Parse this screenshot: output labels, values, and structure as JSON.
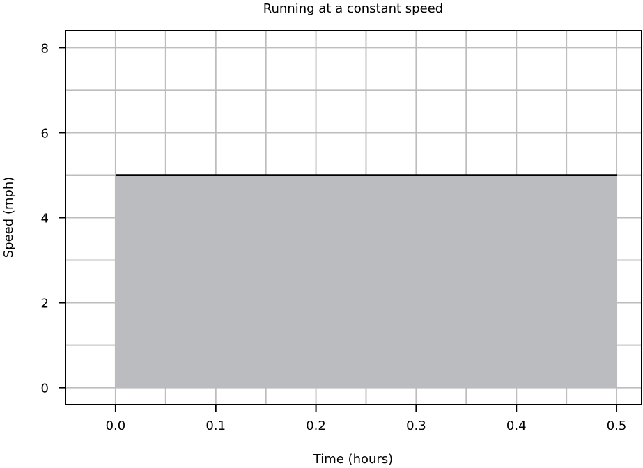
{
  "chart_data": {
    "type": "area",
    "title": "Running at a constant speed",
    "xlabel": "Time (hours)",
    "ylabel": "Speed (mph)",
    "xlim": [
      -0.05,
      0.525
    ],
    "ylim": [
      -0.4,
      8.4
    ],
    "xticks": [
      0.0,
      0.1,
      0.2,
      0.3,
      0.4,
      0.5
    ],
    "xtick_labels": [
      "0.0",
      "0.1",
      "0.2",
      "0.3",
      "0.4",
      "0.5"
    ],
    "yticks": [
      0,
      2,
      4,
      6,
      8
    ],
    "ytick_labels": [
      "0",
      "2",
      "4",
      "6",
      "8"
    ],
    "x_grid_step": 0.05,
    "y_grid_step": 1,
    "grid": true,
    "series": [
      {
        "x": [
          0.0,
          0.5
        ],
        "y": [
          5,
          5
        ]
      }
    ],
    "fill_color": "#bbbcbf",
    "line_color": "#000000",
    "grid_color": "#bdbdbd"
  }
}
